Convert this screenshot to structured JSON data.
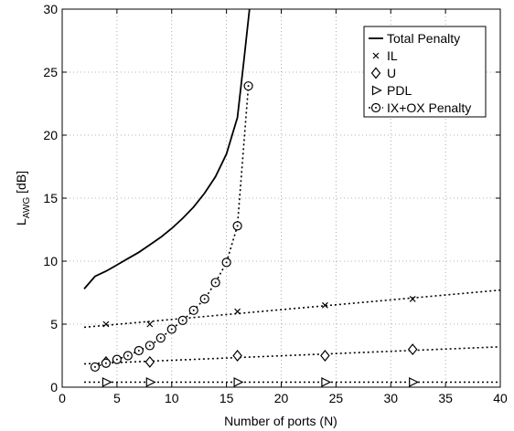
{
  "chart_data": {
    "type": "line",
    "xlabel": "Number of ports (N)",
    "ylabel_main": "L",
    "ylabel_sub": "AWG",
    "ylabel_unit": " [dB]",
    "xlim": [
      0,
      40
    ],
    "ylim": [
      0,
      30
    ],
    "xticks": [
      0,
      5,
      10,
      15,
      20,
      25,
      30,
      35,
      40
    ],
    "yticks": [
      0,
      5,
      10,
      15,
      20,
      25,
      30
    ],
    "grid": true,
    "legend_position": "top-right",
    "series": [
      {
        "name": "Total Penalty",
        "style": "solid",
        "marker": "none",
        "points": [
          [
            2,
            7.8
          ],
          [
            3,
            8.8
          ],
          [
            4,
            9.2
          ],
          [
            5,
            9.7
          ],
          [
            6,
            10.2
          ],
          [
            7,
            10.7
          ],
          [
            8,
            11.3
          ],
          [
            9,
            11.9
          ],
          [
            10,
            12.6
          ],
          [
            11,
            13.4
          ],
          [
            12,
            14.3
          ],
          [
            13,
            15.4
          ],
          [
            14,
            16.7
          ],
          [
            15,
            18.5
          ],
          [
            16,
            21.4
          ],
          [
            16.6,
            26.0
          ],
          [
            17.1,
            30.0
          ]
        ]
      },
      {
        "name": "IL",
        "style": "dotted",
        "marker": "x",
        "line": [
          [
            2,
            4.75
          ],
          [
            40,
            7.7
          ]
        ],
        "points": [
          [
            4,
            5.0
          ],
          [
            8,
            5.0
          ],
          [
            16,
            6.0
          ],
          [
            24,
            6.5
          ],
          [
            32,
            7.0
          ]
        ]
      },
      {
        "name": "U",
        "style": "dotted",
        "marker": "diamond",
        "line": [
          [
            2,
            1.85
          ],
          [
            40,
            3.2
          ]
        ],
        "points": [
          [
            4,
            2.0
          ],
          [
            8,
            2.0
          ],
          [
            16,
            2.5
          ],
          [
            24,
            2.5
          ],
          [
            32,
            3.0
          ]
        ]
      },
      {
        "name": "PDL",
        "style": "dotted",
        "marker": "triangle-right",
        "line": [
          [
            2,
            0.4
          ],
          [
            40,
            0.4
          ]
        ],
        "points": [
          [
            4,
            0.4
          ],
          [
            8,
            0.4
          ],
          [
            16,
            0.4
          ],
          [
            24,
            0.4
          ],
          [
            32,
            0.4
          ]
        ]
      },
      {
        "name": "IX+OX Penalty",
        "style": "dotted",
        "marker": "circle-dot",
        "points": [
          [
            3,
            1.6
          ],
          [
            4,
            1.9
          ],
          [
            5,
            2.2
          ],
          [
            6,
            2.5
          ],
          [
            7,
            2.9
          ],
          [
            8,
            3.3
          ],
          [
            9,
            3.9
          ],
          [
            10,
            4.6
          ],
          [
            11,
            5.3
          ],
          [
            12,
            6.1
          ],
          [
            13,
            7.0
          ],
          [
            14,
            8.3
          ],
          [
            15,
            9.9
          ],
          [
            16,
            12.8
          ],
          [
            17,
            23.9
          ]
        ]
      }
    ]
  }
}
